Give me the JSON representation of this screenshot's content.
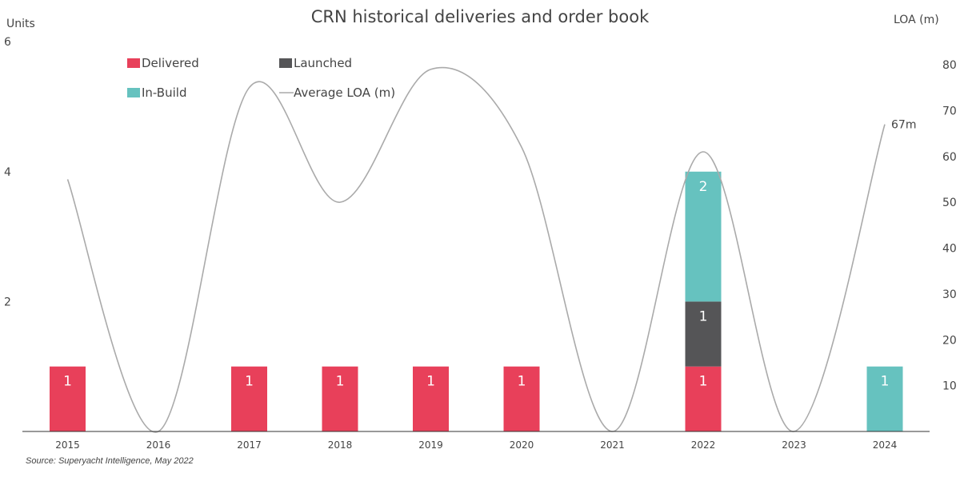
{
  "chart_data": {
    "type": "bar",
    "stacked": true,
    "title": "CRN historical deliveries and order book",
    "ylabel_left": "Units",
    "ylabel_right": "LOA (m)",
    "ylim_left": [
      0,
      6
    ],
    "ylim_right": [
      0,
      84
    ],
    "yticks_left": [
      "2",
      "4",
      "6"
    ],
    "yticks_right": [
      "10",
      "20",
      "30",
      "40",
      "50",
      "60",
      "70",
      "80"
    ],
    "categories": [
      "2015",
      "2016",
      "2017",
      "2018",
      "2019",
      "2020",
      "2021",
      "2022",
      "2023",
      "2024"
    ],
    "series": [
      {
        "name": "Delivered",
        "color": "#e8405a",
        "values": [
          1,
          0,
          1,
          1,
          1,
          1,
          0,
          1,
          0,
          0
        ]
      },
      {
        "name": "Launched",
        "color": "#555557",
        "values": [
          0,
          0,
          0,
          0,
          0,
          0,
          0,
          1,
          0,
          0
        ]
      },
      {
        "name": "In-Build",
        "color": "#66c2bf",
        "values": [
          0,
          0,
          0,
          0,
          0,
          0,
          0,
          2,
          0,
          1
        ]
      }
    ],
    "line": {
      "name": "Average LOA (m)",
      "color": "#aaaaaa",
      "axis": "right",
      "values": [
        55,
        0,
        75,
        50,
        79,
        62,
        0,
        61,
        0,
        67
      ]
    },
    "annotations": [
      {
        "text": "67m",
        "category": "2024"
      }
    ],
    "legend_position": "top-left",
    "grid": false,
    "source": "Source: Superyacht Intelligence, May 2022"
  }
}
